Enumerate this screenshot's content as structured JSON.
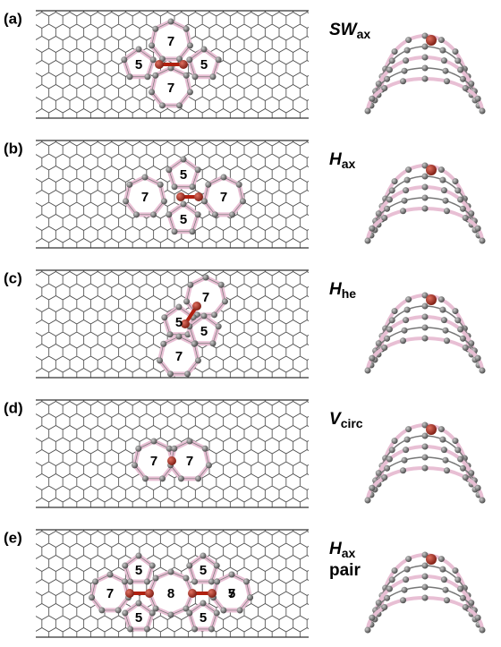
{
  "panels": [
    {
      "label": "(a)",
      "name": {
        "main": "SW",
        "sub": "ax"
      },
      "rings": [
        "7",
        "5",
        "5",
        "7"
      ]
    },
    {
      "label": "(b)",
      "name": {
        "main": "H",
        "sub": "ax"
      },
      "rings": [
        "5",
        "7",
        "7",
        "5"
      ]
    },
    {
      "label": "(c)",
      "name": {
        "main": "H",
        "sub": "he"
      },
      "rings": [
        "7",
        "5",
        "5",
        "7"
      ]
    },
    {
      "label": "(d)",
      "name": {
        "main": "V",
        "sub": "circ"
      },
      "rings": [
        "7",
        "7"
      ]
    },
    {
      "label": "(e)",
      "name": {
        "main": "H",
        "sub": "ax",
        "extra": "pair"
      },
      "rings": [
        "5",
        "7",
        "5",
        "8",
        "5",
        "7",
        "5",
        "5"
      ]
    }
  ]
}
